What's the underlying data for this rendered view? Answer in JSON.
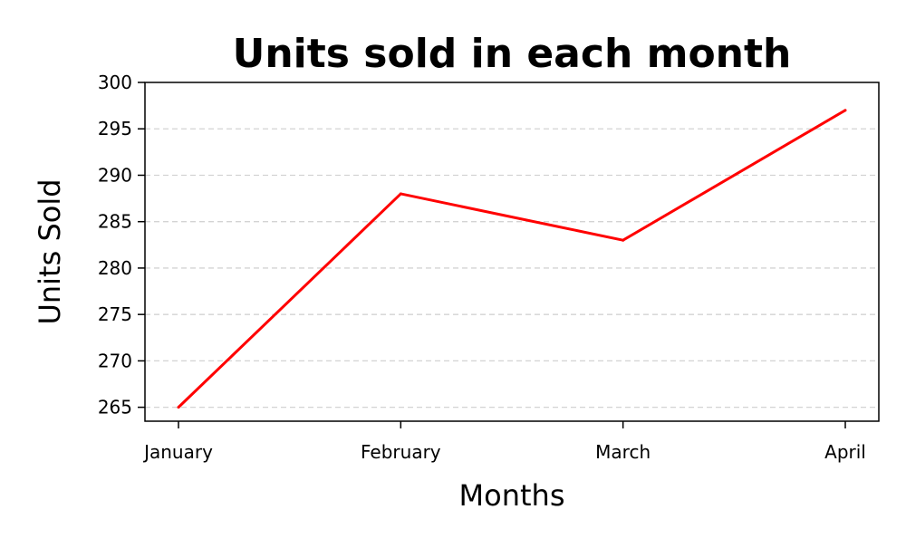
{
  "chart_data": {
    "type": "line",
    "title": "Units sold in each month",
    "xlabel": "Months",
    "ylabel": "Units Sold",
    "categories": [
      "January",
      "February",
      "March",
      "April"
    ],
    "series": [
      {
        "values": [
          265,
          288,
          283,
          297
        ],
        "color": "#ff0000"
      }
    ],
    "ylim": [
      263.5,
      300
    ],
    "yticks": [
      265,
      270,
      275,
      280,
      285,
      290,
      295,
      300
    ],
    "grid": {
      "axis": "y",
      "style": "dashed",
      "color": "#d3d3d3"
    },
    "legend": "none"
  }
}
